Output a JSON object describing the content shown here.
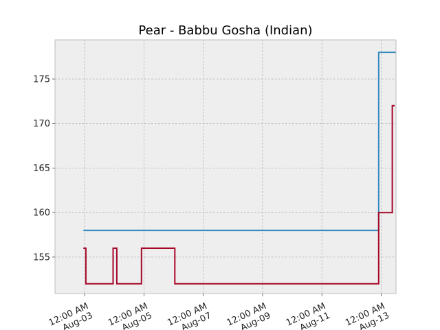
{
  "chart_data": {
    "type": "line",
    "title": "Pear - Babbu Gosha (Indian)",
    "xlabel": "",
    "ylabel": "",
    "x_axis": {
      "type": "date",
      "range": [
        "2024-08-02T00:00",
        "2024-08-13T12:00"
      ],
      "ticks": [
        {
          "value": "2024-08-03T00:00",
          "label": "12:00 AM\nAug-03"
        },
        {
          "value": "2024-08-05T00:00",
          "label": "12:00 AM\nAug-05"
        },
        {
          "value": "2024-08-07T00:00",
          "label": "12:00 AM\nAug-07"
        },
        {
          "value": "2024-08-09T00:00",
          "label": "12:00 AM\nAug-09"
        },
        {
          "value": "2024-08-11T00:00",
          "label": "12:00 AM\nAug-11"
        },
        {
          "value": "2024-08-13T00:00",
          "label": "12:00 AM\nAug-13"
        }
      ]
    },
    "y_axis": {
      "range": [
        150.9,
        179.4
      ],
      "ticks": [
        155,
        160,
        165,
        170,
        175
      ]
    },
    "grid": true,
    "step": "post",
    "series": [
      {
        "color": "#348abd",
        "points": [
          {
            "x": "2024-08-02T23:00",
            "y": 158
          },
          {
            "x": "2024-08-03T23:00",
            "y": 158
          },
          {
            "x": "2024-08-04T23:00",
            "y": 158
          },
          {
            "x": "2024-08-05T23:00",
            "y": 158
          },
          {
            "x": "2024-08-06T23:00",
            "y": 158
          },
          {
            "x": "2024-08-07T23:00",
            "y": 158
          },
          {
            "x": "2024-08-08T23:00",
            "y": 158
          },
          {
            "x": "2024-08-09T23:00",
            "y": 158
          },
          {
            "x": "2024-08-10T23:00",
            "y": 158
          },
          {
            "x": "2024-08-11T23:00",
            "y": 158
          },
          {
            "x": "2024-08-12T22:00",
            "y": 178
          },
          {
            "x": "2024-08-13T12:00",
            "y": 178
          }
        ]
      },
      {
        "color": "#a60628",
        "points": [
          {
            "x": "2024-08-02T23:00",
            "y": 156
          },
          {
            "x": "2024-08-03T01:00",
            "y": 152
          },
          {
            "x": "2024-08-03T23:00",
            "y": 156
          },
          {
            "x": "2024-08-04T02:00",
            "y": 152
          },
          {
            "x": "2024-08-04T22:00",
            "y": 156
          },
          {
            "x": "2024-08-06T01:00",
            "y": 152
          },
          {
            "x": "2024-08-07T01:00",
            "y": 152
          },
          {
            "x": "2024-08-08T01:00",
            "y": 152
          },
          {
            "x": "2024-08-09T01:00",
            "y": 152
          },
          {
            "x": "2024-08-10T01:00",
            "y": 152
          },
          {
            "x": "2024-08-11T01:00",
            "y": 152
          },
          {
            "x": "2024-08-12T22:00",
            "y": 160
          },
          {
            "x": "2024-08-13T09:00",
            "y": 172
          },
          {
            "x": "2024-08-13T11:00",
            "y": 172
          }
        ]
      }
    ],
    "colors": {
      "plot_background": "#eeeeee",
      "plot_border": "#bcbcbc",
      "grid": "#b0b0b0"
    }
  }
}
